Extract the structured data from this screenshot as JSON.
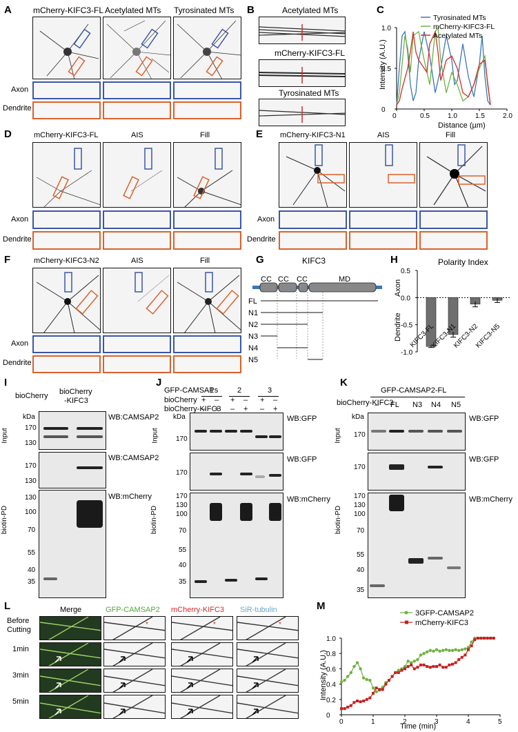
{
  "panels": [
    "A",
    "B",
    "C",
    "D",
    "E",
    "F",
    "G",
    "H",
    "I",
    "J",
    "K",
    "L",
    "M"
  ],
  "A": {
    "columns": [
      "mCherry-KIFC3-FL",
      "Acetylated MTs",
      "Tyrosinated MTs"
    ],
    "rows": [
      "Axon",
      "Dendrite"
    ]
  },
  "B": {
    "labels": [
      "Acetylated MTs",
      "mCherry-KIFC3-FL",
      "Tyrosinated MTs"
    ]
  },
  "C": {
    "legend": [
      "Tyrosinated MTs",
      "mCherry-KIFC3-FL",
      "Acetylated MTs"
    ],
    "colors": [
      "#3a77b5",
      "#6db33f",
      "#d22b2b"
    ],
    "xlabel": "Distance (µm)",
    "ylabel": "Intensity (A.U.)",
    "xticks": [
      "0",
      "0.5",
      "1.0",
      "1.5",
      "2.0"
    ],
    "yticks": [
      "0",
      "0.5",
      "1.0"
    ]
  },
  "D": {
    "columns": [
      "mCherry-KIFC3-FL",
      "AIS",
      "Fill"
    ],
    "rows": [
      "Axon",
      "Dendrite"
    ]
  },
  "E": {
    "columns": [
      "mCherry-KIFC3-N1",
      "AIS",
      "Fill"
    ],
    "rows": [
      "Axon",
      "Dendrite"
    ]
  },
  "F": {
    "columns": [
      "mCherry-KIFC3-N2",
      "AIS",
      "Fill"
    ],
    "rows": [
      "Axon",
      "Dendrite"
    ]
  },
  "G": {
    "title": "KIFC3",
    "domains": [
      "CC",
      "CC",
      "CC",
      "MD"
    ],
    "constructs": [
      "FL",
      "N1",
      "N2",
      "N3",
      "N4",
      "N5"
    ]
  },
  "H": {
    "title": "Polarity Index",
    "axon_label": "Axon",
    "dendrite_label": "Dendrite",
    "yticks": [
      "0.5",
      "0.0",
      "-0.5",
      "-1.0"
    ],
    "categories": [
      "KIFC3-FL",
      "KIFC3-N1",
      "KIFC3-N2",
      "KIFC3-N5"
    ]
  },
  "I": {
    "col1": "bioCherry",
    "col2a": "bioCherry",
    "col2b": "-KIFC3",
    "kda": "kDa",
    "wb1": "WB:CAMSAP2",
    "wb2": "WB:CAMSAP2",
    "wb3": "WB:mCherry",
    "input": "Input",
    "pd": "biotin-PD",
    "mw_top": [
      "170",
      "130"
    ],
    "mw_mid": [
      "170",
      "130"
    ],
    "mw_bot": [
      "130",
      "100",
      "70",
      "55",
      "40",
      "35"
    ]
  },
  "J": {
    "header": "GFP-CAMSAPs",
    "row1": "bioCherry",
    "row2": "bioCherry-KIFC3",
    "groups": [
      "1",
      "2",
      "3"
    ],
    "signs1": [
      "+",
      "–",
      "+",
      "–",
      "+",
      "–"
    ],
    "signs2": [
      "–",
      "+",
      "–",
      "+",
      "–",
      "+"
    ],
    "kda": "kDa",
    "wb1": "WB:GFP",
    "wb2": "WB:GFP",
    "wb3": "WB:mCherry",
    "input": "Input",
    "pd": "biotin-PD",
    "mw_top": [
      "170"
    ],
    "mw_mid": [
      "170"
    ],
    "mw_bot": [
      "170",
      "130",
      "100",
      "70",
      "55",
      "40",
      "35"
    ]
  },
  "K": {
    "header": "GFP-CAMSAP2-FL",
    "row": "bioCherry-KIFC3",
    "lanes": [
      "–",
      "FL",
      "N3",
      "N4",
      "N5"
    ],
    "kda": "kDa",
    "wb1": "WB:GFP",
    "wb2": "WB:GFP",
    "wb3": "WB:mCherry",
    "input": "Input",
    "pd": "biotin-PD",
    "mw_top": [
      "170"
    ],
    "mw_mid": [
      "170"
    ],
    "mw_bot": [
      "170",
      "130",
      "100",
      "70",
      "55",
      "40",
      "35"
    ]
  },
  "L": {
    "columns": [
      "Merge",
      "GFP-CAMSAP2",
      "mCherry-KIFC3",
      "SiR-tubulin"
    ],
    "column_colors": [
      "#000000",
      "#52a83a",
      "#d22b2b",
      "#6aa7c9"
    ],
    "rows": [
      "Before\nCutting",
      "1min",
      "3min",
      "5min"
    ]
  },
  "M": {
    "legend": [
      "3GFP-CAMSAP2",
      "mCherry-KIFC3"
    ],
    "colors": [
      "#6db33f",
      "#c42121"
    ],
    "xlabel": "Time (min)",
    "ylabel": "Intensity (A.U.)",
    "xticks": [
      "0",
      "1",
      "2",
      "3",
      "4",
      "5"
    ],
    "yticks": [
      "0",
      "0.2",
      "0.4",
      "0.6",
      "0.8",
      "1.0"
    ]
  },
  "chart_data": [
    {
      "panel": "C",
      "type": "line",
      "xlabel": "Distance (µm)",
      "ylabel": "Intensity (A.U.)",
      "xlim": [
        0,
        2.0
      ],
      "ylim": [
        0,
        1.0
      ],
      "series": [
        {
          "name": "Tyrosinated MTs",
          "x": [
            0,
            0.05,
            0.1,
            0.15,
            0.2,
            0.25,
            0.3,
            0.35,
            0.4,
            0.5,
            0.6,
            0.7,
            0.8,
            0.9,
            1.0,
            1.05,
            1.1,
            1.2,
            1.3,
            1.4,
            1.5,
            1.55,
            1.6,
            1.65,
            1.7
          ],
          "y": [
            0.05,
            0.5,
            0.9,
            0.95,
            0.7,
            0.3,
            0.1,
            0.2,
            0.6,
            0.95,
            0.65,
            0.2,
            0.5,
            0.9,
            0.6,
            0.3,
            0.35,
            0.8,
            0.4,
            0.15,
            0.55,
            0.9,
            0.4,
            0.1,
            0.05
          ]
        },
        {
          "name": "mCherry-KIFC3-FL",
          "x": [
            0,
            0.05,
            0.1,
            0.15,
            0.2,
            0.25,
            0.3,
            0.4,
            0.5,
            0.6,
            0.7,
            0.75,
            0.8,
            0.9,
            1.0,
            1.1,
            1.2,
            1.3,
            1.4,
            1.5,
            1.6,
            1.65,
            1.7
          ],
          "y": [
            0.05,
            0.2,
            0.55,
            0.9,
            0.75,
            0.45,
            0.9,
            0.95,
            0.6,
            0.3,
            0.95,
            1.0,
            0.6,
            0.2,
            0.45,
            0.3,
            0.1,
            0.15,
            0.3,
            0.5,
            0.65,
            0.3,
            0.05
          ]
        },
        {
          "name": "Acetylated MTs",
          "x": [
            0,
            0.05,
            0.1,
            0.2,
            0.25,
            0.3,
            0.35,
            0.4,
            0.5,
            0.55,
            0.6,
            0.7,
            0.75,
            0.8,
            0.9,
            1.0,
            1.1,
            1.2,
            1.3,
            1.4,
            1.5,
            1.6,
            1.7
          ],
          "y": [
            0.05,
            0.1,
            0.25,
            0.5,
            0.7,
            0.95,
            0.7,
            0.6,
            0.5,
            0.45,
            0.8,
            0.95,
            0.7,
            0.35,
            0.6,
            0.65,
            0.5,
            0.2,
            0.15,
            0.3,
            0.55,
            0.6,
            0.05
          ]
        }
      ]
    },
    {
      "panel": "H",
      "type": "bar",
      "title": "Polarity Index",
      "categories": [
        "KIFC3-FL",
        "KIFC3-N1",
        "KIFC3-N2",
        "KIFC3-N5"
      ],
      "values": [
        -0.9,
        -0.68,
        -0.12,
        -0.05
      ],
      "errors": [
        0.02,
        0.05,
        0.05,
        0.04
      ],
      "ylim": [
        -1.0,
        0.5
      ]
    },
    {
      "panel": "M",
      "type": "line",
      "xlabel": "Time (min)",
      "ylabel": "Intensity (A.U.)",
      "xlim": [
        0,
        5
      ],
      "ylim": [
        0,
        1.0
      ],
      "series": [
        {
          "name": "3GFP-CAMSAP2",
          "x": [
            0,
            0.1,
            0.2,
            0.3,
            0.4,
            0.5,
            0.6,
            0.7,
            0.8,
            0.9,
            1.0,
            1.1,
            1.2,
            1.3,
            1.4,
            1.5,
            1.6,
            1.7,
            1.8,
            1.9,
            2.0,
            2.1,
            2.2,
            2.3,
            2.4,
            2.5,
            2.6,
            2.7,
            2.8,
            2.9,
            3.0,
            3.1,
            3.2,
            3.3,
            3.4,
            3.5,
            3.6,
            3.7,
            3.8,
            3.9,
            4.0,
            4.1,
            4.2,
            4.3,
            4.4,
            4.5,
            4.6,
            4.7,
            4.8
          ],
          "y": [
            0.43,
            0.45,
            0.5,
            0.55,
            0.63,
            0.68,
            0.6,
            0.48,
            0.46,
            0.45,
            0.35,
            0.3,
            0.32,
            0.36,
            0.42,
            0.45,
            0.5,
            0.55,
            0.58,
            0.6,
            0.63,
            0.7,
            0.68,
            0.7,
            0.72,
            0.78,
            0.8,
            0.82,
            0.84,
            0.83,
            0.85,
            0.83,
            0.84,
            0.85,
            0.84,
            0.84,
            0.85,
            0.84,
            0.85,
            0.86,
            0.88,
            0.95,
            1.0,
            1.0,
            1.0,
            1.0,
            1.0,
            1.0,
            1.0
          ]
        },
        {
          "name": "mCherry-KIFC3",
          "x": [
            0,
            0.1,
            0.2,
            0.3,
            0.4,
            0.5,
            0.6,
            0.7,
            0.8,
            0.9,
            1.0,
            1.1,
            1.2,
            1.3,
            1.4,
            1.5,
            1.6,
            1.7,
            1.8,
            1.9,
            2.0,
            2.1,
            2.2,
            2.3,
            2.4,
            2.5,
            2.6,
            2.7,
            2.8,
            2.9,
            3.0,
            3.1,
            3.2,
            3.3,
            3.4,
            3.5,
            3.6,
            3.7,
            3.8,
            3.9,
            4.0,
            4.1,
            4.2,
            4.3,
            4.4,
            4.5,
            4.6,
            4.7,
            4.8
          ],
          "y": [
            0.08,
            0.08,
            0.1,
            0.12,
            0.16,
            0.18,
            0.17,
            0.18,
            0.2,
            0.22,
            0.28,
            0.35,
            0.33,
            0.33,
            0.4,
            0.45,
            0.5,
            0.55,
            0.55,
            0.58,
            0.6,
            0.63,
            0.65,
            0.6,
            0.62,
            0.65,
            0.65,
            0.63,
            0.62,
            0.63,
            0.63,
            0.65,
            0.62,
            0.62,
            0.65,
            0.66,
            0.68,
            0.72,
            0.75,
            0.78,
            0.85,
            0.9,
            0.98,
            1.0,
            1.0,
            1.0,
            1.0,
            1.0,
            1.0
          ]
        }
      ]
    }
  ]
}
